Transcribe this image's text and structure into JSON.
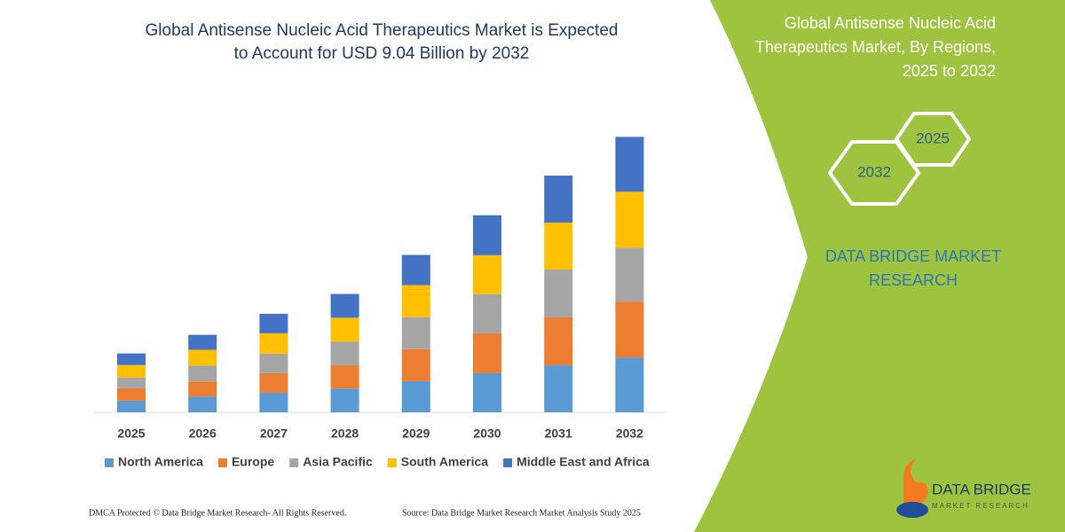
{
  "chart_data": {
    "type": "bar",
    "stacked": true,
    "title": [
      "Global Antisense Nucleic Acid Therapeutics Market is Expected",
      "to Account for USD 9.04 Billion by 2032"
    ],
    "categories": [
      "2025",
      "2026",
      "2027",
      "2028",
      "2029",
      "2030",
      "2031",
      "2032"
    ],
    "series": [
      {
        "name": "North America",
        "color": "#5b9bd5",
        "values": [
          0.38,
          0.52,
          0.64,
          0.78,
          1.02,
          1.28,
          1.54,
          1.8
        ]
      },
      {
        "name": "Europe",
        "color": "#ed7d31",
        "values": [
          0.41,
          0.49,
          0.64,
          0.76,
          1.05,
          1.31,
          1.57,
          1.83
        ]
      },
      {
        "name": "Asia Pacific",
        "color": "#a5a5a5",
        "values": [
          0.35,
          0.52,
          0.64,
          0.78,
          1.05,
          1.28,
          1.57,
          1.77
        ]
      },
      {
        "name": "South America",
        "color": "#ffc000",
        "values": [
          0.41,
          0.52,
          0.67,
          0.78,
          1.05,
          1.28,
          1.54,
          1.83
        ]
      },
      {
        "name": "Middle East and Africa",
        "color": "#4472c4",
        "values": [
          0.38,
          0.49,
          0.64,
          0.78,
          0.99,
          1.31,
          1.54,
          1.8
        ]
      }
    ],
    "ylim": [
      0,
      10
    ]
  },
  "panel": {
    "title": [
      "Global Antisense Nucleic Acid",
      "Therapeutics Market, By Regions,",
      "2025 to 2032"
    ],
    "hexagons": [
      "2025",
      "2032"
    ],
    "brand": [
      "DATA BRIDGE MARKET",
      "RESEARCH"
    ]
  },
  "footer": {
    "left": "DMCA Protected © Data Bridge Market Research-  All Rights Reserved.",
    "right": "Source: Data Bridge Market Research  Market Analysis Study 2025"
  },
  "logo": {
    "name": "DATA BRIDGE",
    "tagline": "MARKET RESEARCH"
  }
}
